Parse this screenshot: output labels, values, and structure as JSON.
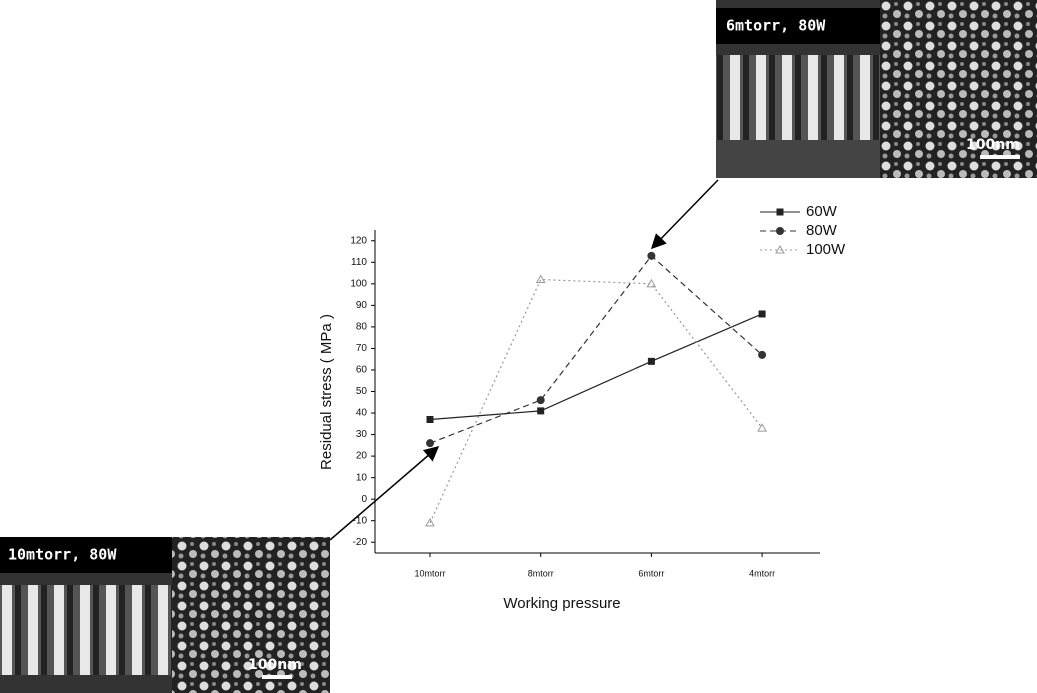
{
  "chart_data": {
    "type": "line",
    "categories": [
      "10mtorr",
      "8mtorr",
      "6mtorr",
      "4mtorr"
    ],
    "series": [
      {
        "name": "60W",
        "color": "#222222",
        "marker": "square",
        "line_style": "solid",
        "values": [
          37,
          41,
          64,
          86
        ]
      },
      {
        "name": "80W",
        "color": "#333333",
        "marker": "circle",
        "line_style": "dashed",
        "values": [
          26,
          46,
          113,
          67
        ]
      },
      {
        "name": "100W",
        "color": "#999999",
        "marker": "triangle",
        "line_style": "dotted",
        "values": [
          -11,
          102,
          100,
          33
        ]
      }
    ],
    "ylim": [
      -25,
      125
    ],
    "yticks": [
      -20,
      -10,
      0,
      10,
      20,
      30,
      40,
      50,
      60,
      70,
      80,
      90,
      100,
      110,
      120
    ],
    "y_label": "Residual stress ( MPa )",
    "x_label": "Working pressure",
    "insets": [
      {
        "label": "6mtorr, 80W",
        "scale_bar": "100nm"
      },
      {
        "label": "10mtorr, 80W",
        "scale_bar": "100nm"
      }
    ]
  }
}
